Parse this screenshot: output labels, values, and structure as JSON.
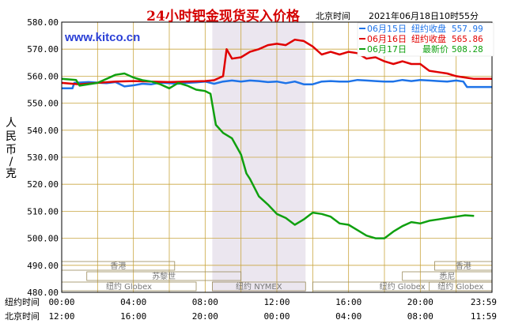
{
  "header": {
    "title": "24小时钯金现货买入价格",
    "clock_label": "北京时间",
    "timestamp": "2021年06月18日10时55分",
    "watermark": "www.kitco.cn"
  },
  "chart_data": {
    "type": "line",
    "title": "24小时钯金现货买入价格",
    "ylabel": "人民币/克",
    "ylim": [
      480,
      580
    ],
    "y_ticks": [
      480,
      490,
      500,
      510,
      520,
      530,
      540,
      550,
      560,
      570,
      580
    ],
    "y_tick_labels": [
      "480.00",
      "490.00",
      "500.00",
      "510.00",
      "520.00",
      "530.00",
      "540.00",
      "550.00",
      "560.00",
      "570.00",
      "580.00"
    ],
    "xlim": [
      0,
      24
    ],
    "x_ticks": [
      0,
      4,
      8,
      12,
      16,
      20,
      24
    ],
    "x_tick_rows": [
      {
        "label": "纽约时间",
        "ticks": [
          "00:00",
          "04:00",
          "08:00",
          "12:00",
          "16:00",
          "20:00",
          "23:59"
        ]
      },
      {
        "label": "北京时间",
        "ticks": [
          "12:00",
          "16:00",
          "20:00",
          "00:00",
          "04:00",
          "08:00",
          "11:59"
        ]
      }
    ],
    "grid": true,
    "shaded_range": [
      8.4,
      13.6
    ],
    "legend": [
      {
        "date": "06月15日",
        "desc": "纽约收盘",
        "value": "557.99",
        "color": "#1e73e8"
      },
      {
        "date": "06月16日",
        "desc": "纽约收盘",
        "value": "565.86",
        "color": "#e00000"
      },
      {
        "date": "06月17日",
        "desc": "最新价",
        "value": "508.28",
        "color": "#10a010"
      }
    ],
    "series": [
      {
        "date": "06月15日",
        "color": "#1e73e8",
        "x": [
          0,
          0.6,
          0.7,
          1.5,
          2.5,
          3.0,
          3.5,
          4.0,
          4.5,
          5.0,
          5.5,
          6.0,
          6.5,
          7.0,
          7.5,
          8.0,
          8.5,
          9.0,
          9.5,
          10.0,
          10.5,
          11.0,
          11.5,
          12.0,
          12.5,
          13.0,
          13.5,
          14.0,
          14.5,
          15.0,
          15.5,
          16.0,
          16.5,
          17.0,
          17.5,
          18.0,
          18.5,
          19.0,
          19.5,
          20.0,
          20.5,
          21.0,
          21.5,
          22.0,
          22.4,
          22.6,
          23.0,
          23.5,
          24.0
        ],
        "y": [
          555.5,
          555.5,
          557.5,
          557.8,
          557.4,
          557.8,
          556.2,
          556.6,
          557.2,
          557.0,
          557.6,
          557.4,
          557.2,
          557.5,
          557.7,
          558.0,
          557.2,
          558.0,
          558.4,
          558.0,
          558.4,
          558.2,
          557.8,
          558.0,
          557.4,
          558.0,
          557.0,
          557.0,
          558.0,
          558.2,
          558.0,
          558.0,
          558.6,
          558.4,
          558.2,
          558.0,
          558.0,
          558.6,
          558.2,
          558.6,
          558.4,
          558.2,
          558.0,
          558.4,
          558.0,
          556.0,
          556.0,
          556.0,
          556.0
        ]
      },
      {
        "date": "06月16日",
        "color": "#e00000",
        "x": [
          0,
          1.0,
          2.0,
          3.0,
          4.0,
          5.0,
          6.0,
          7.0,
          8.0,
          8.5,
          9.0,
          9.2,
          9.5,
          10.0,
          10.5,
          11.0,
          11.5,
          12.0,
          12.5,
          13.0,
          13.5,
          14.0,
          14.5,
          15.0,
          15.5,
          16.0,
          16.5,
          17.0,
          17.5,
          18.0,
          18.5,
          19.0,
          19.5,
          20.0,
          20.5,
          21.0,
          21.5,
          22.0,
          22.5,
          23.0,
          23.5,
          24.0
        ],
        "y": [
          557.5,
          557.0,
          557.5,
          558.0,
          558.2,
          558.0,
          557.8,
          558.0,
          558.2,
          558.5,
          560.0,
          570.0,
          566.5,
          567.0,
          569.0,
          570.0,
          571.5,
          572.0,
          571.5,
          573.5,
          573.0,
          571.0,
          568.0,
          569.0,
          568.0,
          569.0,
          568.5,
          566.5,
          567.0,
          565.5,
          564.5,
          565.5,
          564.5,
          564.5,
          562.0,
          561.5,
          561.0,
          560.0,
          559.5,
          559.0,
          559.0,
          559.0
        ]
      },
      {
        "date": "06月17日",
        "color": "#10a010",
        "x": [
          0,
          0.8,
          1.0,
          2.0,
          2.5,
          3.0,
          3.5,
          4.0,
          4.5,
          5.0,
          5.5,
          6.0,
          6.5,
          7.0,
          7.5,
          8.0,
          8.3,
          8.6,
          9.0,
          9.5,
          10.0,
          10.3,
          10.5,
          11.0,
          11.5,
          12.0,
          12.5,
          13.0,
          13.5,
          14.0,
          14.5,
          15.0,
          15.5,
          16.0,
          16.5,
          17.0,
          17.5,
          18.0,
          18.5,
          19.0,
          19.5,
          20.0,
          20.5,
          21.0,
          21.5,
          22.0,
          22.5,
          23.0
        ],
        "y": [
          559.0,
          558.6,
          556.5,
          557.5,
          559.0,
          560.5,
          561.0,
          559.5,
          558.5,
          558.0,
          557.0,
          555.5,
          557.5,
          556.5,
          555.0,
          554.5,
          553.5,
          542.0,
          539.0,
          537.0,
          531.0,
          524.0,
          522.0,
          515.5,
          512.5,
          509.0,
          507.5,
          505.0,
          507.0,
          509.5,
          509.0,
          508.0,
          505.5,
          505.0,
          503.0,
          501.0,
          500.0,
          500.0,
          502.5,
          504.5,
          506.0,
          505.5,
          506.5,
          507.0,
          507.5,
          508.0,
          508.5,
          508.3
        ]
      }
    ],
    "market_sessions": [
      {
        "label": "香港",
        "start": 0,
        "end": 6.3,
        "lane": 1
      },
      {
        "label": "苏黎世",
        "start": 1.4,
        "end": 10.0,
        "lane": 2
      },
      {
        "label": "纽约 Globex",
        "start": 0,
        "end": 7.5,
        "lane": 3
      },
      {
        "label": "纽约 NYMEX",
        "start": 8.4,
        "end": 13.6,
        "lane": 3
      },
      {
        "label": "纽约 Globex",
        "start": 14.0,
        "end": 24,
        "lane": 3
      },
      {
        "label": "香港",
        "start": 20.8,
        "end": 24,
        "lane": 1
      },
      {
        "label": "悉尼",
        "start": 19.0,
        "end": 24,
        "lane": 2
      },
      {
        "label": "纽约 Globex",
        "start": 20.5,
        "end": 24,
        "lane": 3
      }
    ]
  }
}
